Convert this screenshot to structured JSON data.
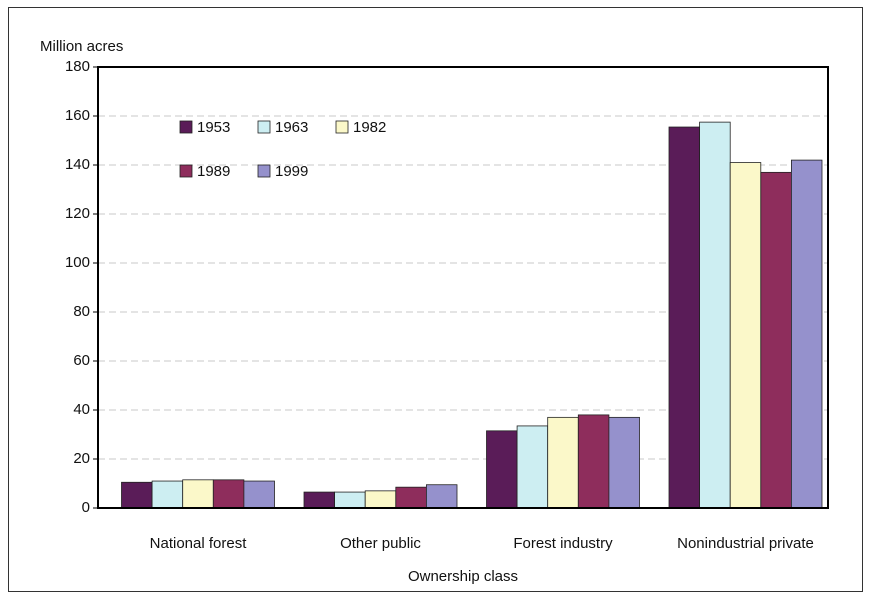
{
  "chart_data": {
    "type": "bar",
    "y_label": "Million acres",
    "x_label": "Ownership class",
    "categories": [
      "National forest",
      "Other public",
      "Forest industry",
      "Nonindustrial private"
    ],
    "series": [
      {
        "name": "1953",
        "color": "#5a1c58",
        "values": [
          10.5,
          6.5,
          31.5,
          155.5
        ]
      },
      {
        "name": "1963",
        "color": "#cdeef2",
        "values": [
          11,
          6.5,
          33.5,
          157.5
        ]
      },
      {
        "name": "1982",
        "color": "#fbf8c9",
        "values": [
          11.5,
          7,
          37,
          141
        ]
      },
      {
        "name": "1989",
        "color": "#8e2d5c",
        "values": [
          11.5,
          8.5,
          38,
          137
        ]
      },
      {
        "name": "1999",
        "color": "#9591cc",
        "values": [
          11,
          9.5,
          37,
          142
        ]
      }
    ],
    "ylim": [
      0,
      180
    ],
    "yticks": [
      0,
      20,
      40,
      60,
      80,
      100,
      120,
      140,
      160,
      180
    ],
    "grid": true,
    "legend": "upper left"
  }
}
